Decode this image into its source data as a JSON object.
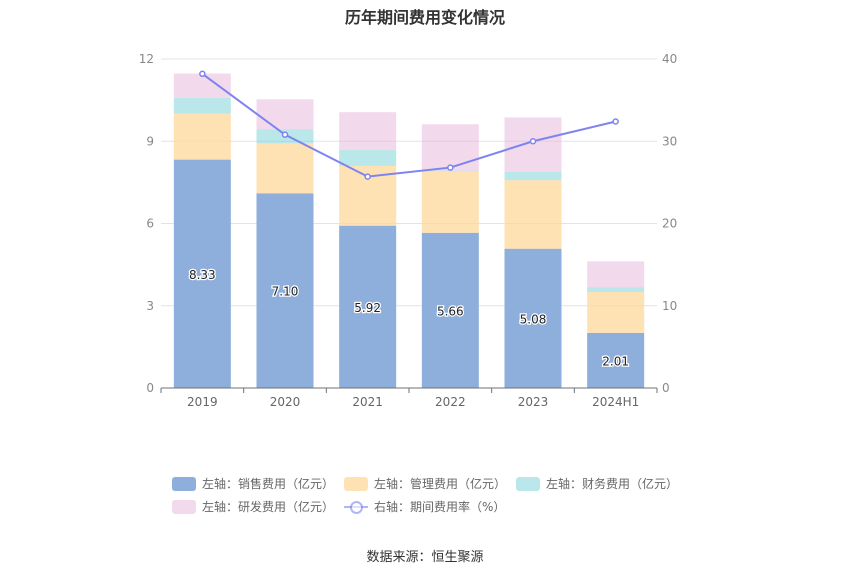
{
  "chart_data": {
    "type": "bar",
    "title": "历年期间费用变化情况",
    "categories": [
      "2019",
      "2020",
      "2021",
      "2022",
      "2023",
      "2024H1"
    ],
    "y_left": {
      "min": 0,
      "max": 12,
      "ticks": [
        "0",
        "3",
        "6",
        "9",
        "12"
      ]
    },
    "y_right": {
      "min": 0,
      "max": 40,
      "ticks": [
        "0",
        "10",
        "20",
        "30",
        "40"
      ]
    },
    "series": [
      {
        "name": "左轴：销售费用（亿元）",
        "axis": "left",
        "stack": "total",
        "color": "#8eaedc",
        "values": [
          8.33,
          7.1,
          5.92,
          5.66,
          5.08,
          2.01
        ],
        "labels": [
          "8.33",
          "7.10",
          "5.92",
          "5.66",
          "5.08",
          "2.01"
        ]
      },
      {
        "name": "左轴：管理费用（亿元）",
        "axis": "left",
        "stack": "total",
        "color": "#fed89b",
        "values": [
          1.68,
          1.82,
          2.18,
          2.24,
          2.5,
          1.49
        ]
      },
      {
        "name": "左轴：财务费用（亿元）",
        "axis": "left",
        "stack": "total",
        "color": "#82d6d8",
        "values": [
          0.57,
          0.52,
          0.58,
          0.03,
          0.3,
          0.18
        ]
      },
      {
        "name": "左轴：研发费用（亿元）",
        "axis": "left",
        "stack": "total",
        "color": "#e8bbdc",
        "values": [
          0.89,
          1.09,
          1.38,
          1.69,
          1.99,
          0.94
        ]
      },
      {
        "name": "右轴：期间费用率（%）",
        "axis": "right",
        "type": "line",
        "color": "#7d84f0",
        "values": [
          38.2,
          30.8,
          25.7,
          26.8,
          30.0,
          32.4
        ]
      }
    ],
    "legend_position": "bottom",
    "grid": true
  },
  "legend": [
    [
      "左轴：销售费用（亿元）",
      "左轴：管理费用（亿元）",
      "左轴：财务费用（亿元）"
    ],
    [
      "左轴：研发费用（亿元）",
      "右轴：期间费用率（%）"
    ]
  ],
  "source": "数据来源：恒生聚源"
}
